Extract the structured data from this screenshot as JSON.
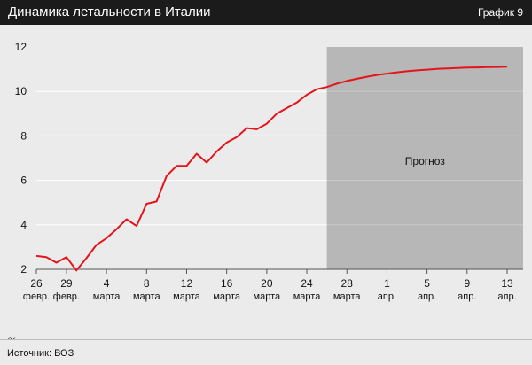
{
  "header": {
    "title": "Динамика летальности в Италии",
    "badge": "График 9"
  },
  "unit_label": "%",
  "source": "Источник: ВОЗ",
  "colors": {
    "header_bg": "#1b1b1b",
    "plot_bg": "#ebebeb",
    "forecast_bg": "#b7b7b7",
    "line": "#e4141b",
    "grid": "#ffffff"
  },
  "chart_data": {
    "type": "line",
    "x": [
      "26.02",
      "27.02",
      "28.02",
      "29.02",
      "01.03",
      "02.03",
      "03.03",
      "04.03",
      "05.03",
      "06.03",
      "07.03",
      "08.03",
      "09.03",
      "10.03",
      "11.03",
      "12.03",
      "13.03",
      "14.03",
      "15.03",
      "16.03",
      "17.03",
      "18.03",
      "19.03",
      "20.03",
      "21.03",
      "22.03",
      "23.03",
      "24.03",
      "25.03",
      "26.03",
      "27.03",
      "28.03",
      "29.03",
      "30.03",
      "31.03",
      "01.04",
      "02.04",
      "03.04",
      "04.04",
      "05.04",
      "06.04",
      "07.04",
      "08.04",
      "09.04",
      "10.04",
      "11.04",
      "12.04",
      "13.04"
    ],
    "series": [
      {
        "values": [
          2.6,
          2.55,
          2.3,
          2.55,
          1.95,
          2.5,
          3.1,
          3.4,
          3.8,
          4.25,
          3.95,
          4.95,
          5.05,
          6.2,
          6.65,
          6.65,
          7.2,
          6.8,
          7.3,
          7.7,
          7.95,
          8.35,
          8.3,
          8.55,
          9.0,
          9.25,
          9.5,
          9.85,
          10.1,
          10.2,
          10.35,
          10.47,
          10.57,
          10.66,
          10.74,
          10.8,
          10.86,
          10.91,
          10.95,
          10.98,
          11.01,
          11.03,
          11.05,
          11.07,
          11.08,
          11.09,
          11.1,
          11.11
        ]
      }
    ],
    "forecast_from": "26.03",
    "forecast_label": "Прогноз",
    "xticks": [
      {
        "x": "26.02",
        "day": "26",
        "month": "февр."
      },
      {
        "x": "29.02",
        "day": "29",
        "month": "февр."
      },
      {
        "x": "04.03",
        "day": "4",
        "month": "марта"
      },
      {
        "x": "08.03",
        "day": "8",
        "month": "марта"
      },
      {
        "x": "12.03",
        "day": "12",
        "month": "марта"
      },
      {
        "x": "16.03",
        "day": "16",
        "month": "марта"
      },
      {
        "x": "20.03",
        "day": "20",
        "month": "марта"
      },
      {
        "x": "24.03",
        "day": "24",
        "month": "марта"
      },
      {
        "x": "28.03",
        "day": "28",
        "month": "марта"
      },
      {
        "x": "01.04",
        "day": "1",
        "month": "апр."
      },
      {
        "x": "05.04",
        "day": "5",
        "month": "апр."
      },
      {
        "x": "09.04",
        "day": "9",
        "month": "апр."
      },
      {
        "x": "13.04",
        "day": "13",
        "month": "апр."
      }
    ],
    "yticks": [
      2,
      4,
      6,
      8,
      10,
      12
    ],
    "ylim": [
      2,
      12
    ],
    "ylabel": "%",
    "grid": true
  }
}
